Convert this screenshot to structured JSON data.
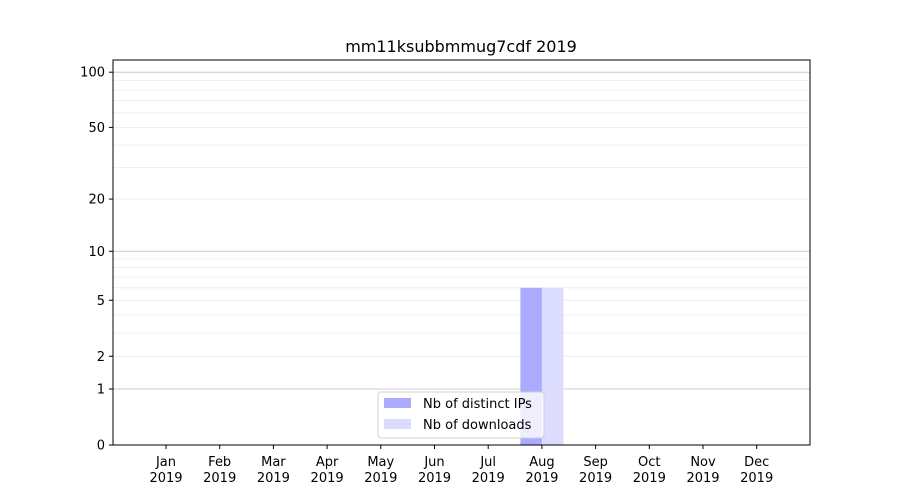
{
  "chart_data": {
    "type": "bar",
    "title": "mm11ksubbmmug7cdf 2019",
    "xlabel": "",
    "ylabel": "",
    "yscale": "log(1+y)",
    "ylim": [
      0,
      116
    ],
    "yticks": [
      0,
      1,
      2,
      5,
      10,
      20,
      50,
      100
    ],
    "grid": true,
    "legend_position": "bottom-center",
    "categories": [
      "Jan\n2019",
      "Feb\n2019",
      "Mar\n2019",
      "Apr\n2019",
      "May\n2019",
      "Jun\n2019",
      "Jul\n2019",
      "Aug\n2019",
      "Sep\n2019",
      "Oct\n2019",
      "Nov\n2019",
      "Dec\n2019"
    ],
    "series": [
      {
        "name": "Nb of distinct IPs",
        "color": "#aaaaff",
        "values": [
          0,
          0,
          0,
          0,
          0,
          0,
          0,
          6,
          0,
          0,
          0,
          0
        ]
      },
      {
        "name": "Nb of downloads",
        "color": "#dcdcff",
        "values": [
          0,
          0,
          0,
          0,
          0,
          0,
          0,
          6,
          0,
          0,
          0,
          0
        ]
      }
    ]
  }
}
